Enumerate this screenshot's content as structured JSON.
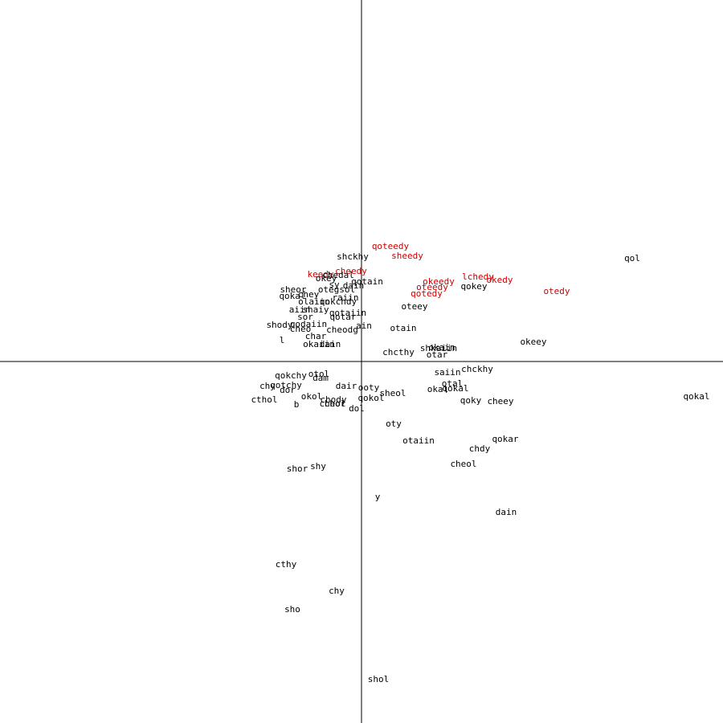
{
  "chart_data": {
    "type": "scatter",
    "title": "",
    "xlabel": "",
    "ylabel": "",
    "xlim": [
      -450,
      450
    ],
    "ylim": [
      -450,
      450
    ],
    "grid": false,
    "legend": "none",
    "colors": {
      "default": "#000000",
      "highlight": "#cc0000",
      "axis": "#000000"
    },
    "points": [
      {
        "label": "qoteedy",
        "x": 36,
        "y": 143,
        "highlight": true
      },
      {
        "label": "sheedy",
        "x": 57,
        "y": 131,
        "highlight": true
      },
      {
        "label": "shckhy",
        "x": -11,
        "y": 130,
        "highlight": false
      },
      {
        "label": "qol",
        "x": 337,
        "y": 128,
        "highlight": false
      },
      {
        "label": "keedy",
        "x": -51,
        "y": 108,
        "highlight": true
      },
      {
        "label": "cheedy",
        "x": -13,
        "y": 112,
        "highlight": true
      },
      {
        "label": "okey",
        "x": -44,
        "y": 103,
        "highlight": false
      },
      {
        "label": "chedal",
        "x": -29,
        "y": 107,
        "highlight": false
      },
      {
        "label": "qotain",
        "x": 7,
        "y": 99,
        "highlight": false
      },
      {
        "label": "sy",
        "x": -34,
        "y": 95,
        "highlight": false
      },
      {
        "label": "dain",
        "x": -10,
        "y": 94,
        "highlight": false
      },
      {
        "label": "lchedy",
        "x": 145,
        "y": 105,
        "highlight": true
      },
      {
        "label": "okedy",
        "x": 172,
        "y": 101,
        "highlight": true
      },
      {
        "label": "okeedy",
        "x": 96,
        "y": 99,
        "highlight": true
      },
      {
        "label": "qokey",
        "x": 140,
        "y": 93,
        "highlight": false
      },
      {
        "label": "oteedy",
        "x": 88,
        "y": 92,
        "highlight": true
      },
      {
        "label": "otedy",
        "x": 243,
        "y": 87,
        "highlight": true
      },
      {
        "label": "sheor",
        "x": -85,
        "y": 89,
        "highlight": false
      },
      {
        "label": "otegsol",
        "x": -31,
        "y": 89,
        "highlight": false
      },
      {
        "label": "qokal",
        "x": -86,
        "y": 81,
        "highlight": false
      },
      {
        "label": "chey",
        "x": -66,
        "y": 83,
        "highlight": false
      },
      {
        "label": "raiin",
        "x": -20,
        "y": 79,
        "highlight": false
      },
      {
        "label": "qotedy",
        "x": 81,
        "y": 84,
        "highlight": true
      },
      {
        "label": "olaiin",
        "x": -59,
        "y": 74,
        "highlight": false
      },
      {
        "label": "qokchdy",
        "x": -29,
        "y": 74,
        "highlight": false
      },
      {
        "label": "oteey",
        "x": 66,
        "y": 68,
        "highlight": false
      },
      {
        "label": "aiin",
        "x": -77,
        "y": 64,
        "highlight": false
      },
      {
        "label": "shaiy",
        "x": -57,
        "y": 64,
        "highlight": false
      },
      {
        "label": "qotaiin",
        "x": -17,
        "y": 60,
        "highlight": false
      },
      {
        "label": "sor",
        "x": -70,
        "y": 55,
        "highlight": false
      },
      {
        "label": "qotar",
        "x": -23,
        "y": 55,
        "highlight": false
      },
      {
        "label": "shody",
        "x": -102,
        "y": 45,
        "highlight": false
      },
      {
        "label": "qodaiin",
        "x": -66,
        "y": 46,
        "highlight": false
      },
      {
        "label": "ain",
        "x": 3,
        "y": 44,
        "highlight": false
      },
      {
        "label": "otain",
        "x": 52,
        "y": 41,
        "highlight": false
      },
      {
        "label": "cheo",
        "x": -76,
        "y": 40,
        "highlight": false
      },
      {
        "label": "cheodg",
        "x": -24,
        "y": 39,
        "highlight": false
      },
      {
        "label": "char",
        "x": -57,
        "y": 31,
        "highlight": false
      },
      {
        "label": "l",
        "x": -99,
        "y": 26,
        "highlight": false
      },
      {
        "label": "okeey",
        "x": 214,
        "y": 24,
        "highlight": false
      },
      {
        "label": "okaiin",
        "x": -53,
        "y": 21,
        "highlight": false
      },
      {
        "label": "dain",
        "x": -39,
        "y": 21,
        "highlight": false
      },
      {
        "label": "shkaiin",
        "x": 96,
        "y": 16,
        "highlight": false
      },
      {
        "label": "okain",
        "x": 100,
        "y": 17,
        "highlight": false
      },
      {
        "label": "chcthy",
        "x": 46,
        "y": 11,
        "highlight": false
      },
      {
        "label": "otar",
        "x": 94,
        "y": 8,
        "highlight": false
      },
      {
        "label": "chckhy",
        "x": 144,
        "y": -10,
        "highlight": false
      },
      {
        "label": "saiin",
        "x": 107,
        "y": -14,
        "highlight": false
      },
      {
        "label": "qokchy",
        "x": -88,
        "y": -18,
        "highlight": false
      },
      {
        "label": "otol",
        "x": -53,
        "y": -16,
        "highlight": false
      },
      {
        "label": "dam",
        "x": -51,
        "y": -21,
        "highlight": false
      },
      {
        "label": "qotchy",
        "x": -94,
        "y": -30,
        "highlight": false
      },
      {
        "label": "chy",
        "x": -117,
        "y": -31,
        "highlight": false
      },
      {
        "label": "dor",
        "x": -92,
        "y": -36,
        "highlight": false
      },
      {
        "label": "dair",
        "x": -19,
        "y": -31,
        "highlight": false
      },
      {
        "label": "ooty",
        "x": 9,
        "y": -33,
        "highlight": false
      },
      {
        "label": "otal",
        "x": 113,
        "y": -28,
        "highlight": false
      },
      {
        "label": "okal",
        "x": 95,
        "y": -35,
        "highlight": false
      },
      {
        "label": "qokal",
        "x": 117,
        "y": -34,
        "highlight": false
      },
      {
        "label": "sheol",
        "x": 39,
        "y": -40,
        "highlight": false
      },
      {
        "label": "okol",
        "x": -62,
        "y": -44,
        "highlight": false
      },
      {
        "label": "qokol",
        "x": 12,
        "y": -46,
        "highlight": false
      },
      {
        "label": "chody",
        "x": -35,
        "y": -48,
        "highlight": false
      },
      {
        "label": "cthol",
        "x": -121,
        "y": -48,
        "highlight": false
      },
      {
        "label": "qoky",
        "x": 136,
        "y": -49,
        "highlight": false
      },
      {
        "label": "cheey",
        "x": 173,
        "y": -50,
        "highlight": false
      },
      {
        "label": "qokal",
        "x": 417,
        "y": -44,
        "highlight": false
      },
      {
        "label": "b",
        "x": -81,
        "y": -54,
        "highlight": false
      },
      {
        "label": "cheol",
        "x": -36,
        "y": -53,
        "highlight": false
      },
      {
        "label": "chor",
        "x": -33,
        "y": -53,
        "highlight": false
      },
      {
        "label": "dol",
        "x": -6,
        "y": -59,
        "highlight": false
      },
      {
        "label": "oty",
        "x": 40,
        "y": -78,
        "highlight": false
      },
      {
        "label": "qokar",
        "x": 179,
        "y": -97,
        "highlight": false
      },
      {
        "label": "otaiin",
        "x": 71,
        "y": -99,
        "highlight": false
      },
      {
        "label": "chdy",
        "x": 147,
        "y": -109,
        "highlight": false
      },
      {
        "label": "cheol",
        "x": 127,
        "y": -128,
        "highlight": false
      },
      {
        "label": "shor",
        "x": -80,
        "y": -134,
        "highlight": false
      },
      {
        "label": "shy",
        "x": -54,
        "y": -131,
        "highlight": false
      },
      {
        "label": "y",
        "x": 20,
        "y": -169,
        "highlight": false
      },
      {
        "label": "dain",
        "x": 180,
        "y": -188,
        "highlight": false
      },
      {
        "label": "cthy",
        "x": -94,
        "y": -253,
        "highlight": false
      },
      {
        "label": "chy",
        "x": -31,
        "y": -286,
        "highlight": false
      },
      {
        "label": "sho",
        "x": -86,
        "y": -309,
        "highlight": false
      },
      {
        "label": "shol",
        "x": 21,
        "y": -396,
        "highlight": false
      }
    ]
  }
}
